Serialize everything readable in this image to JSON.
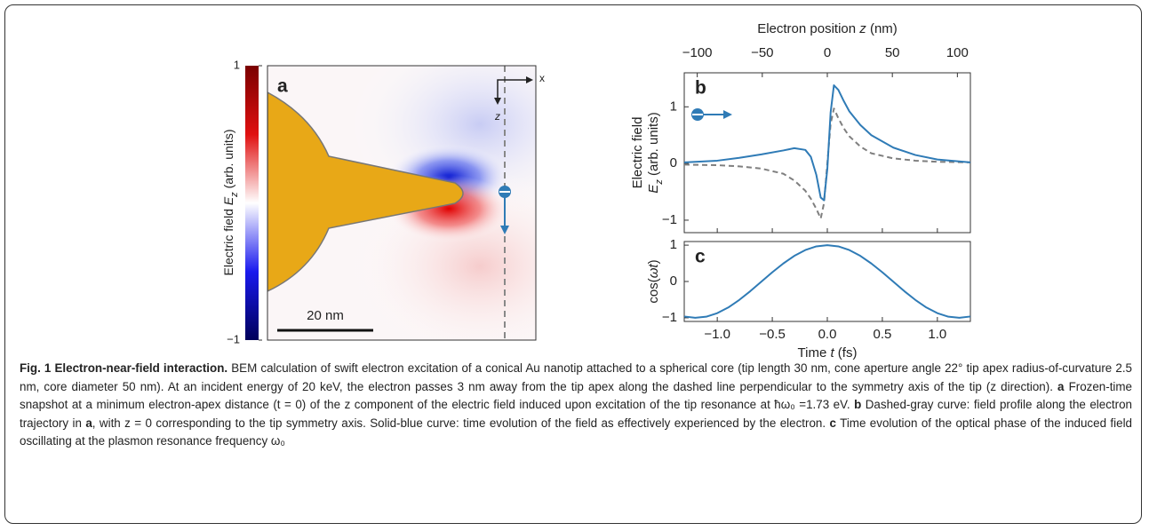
{
  "panel_a": {
    "label": "a",
    "colorbar_label": [
      "Electric field ",
      "E",
      "z",
      " (arb. units)"
    ],
    "colorbar_lim": [
      -1,
      1
    ],
    "colorbar_ticks": [
      1,
      {
        "value": -1,
        "label": "−1"
      }
    ],
    "scale_bar": "20 nm",
    "axis_x": "x",
    "axis_z": "z"
  },
  "chart_data": [
    {
      "type": "line",
      "panel_label": "b",
      "x2label": [
        "Electron position ",
        "z",
        " (nm)"
      ],
      "x2lim": [
        -110,
        110
      ],
      "x2ticks": [
        {
          "value": -100,
          "label": "−100"
        },
        {
          "value": -50,
          "label": "−50"
        },
        0,
        50,
        100
      ],
      "ylabel": [
        "Electric field",
        "E",
        "z",
        " (arb. units)"
      ],
      "xlim": [
        -1.3,
        1.3
      ],
      "ylim": [
        -1.22,
        1.6
      ],
      "yticks": [
        {
          "value": -1,
          "label": "−1"
        },
        0,
        1
      ],
      "x": [
        -1.3,
        -1.0,
        -0.8,
        -0.6,
        -0.4,
        -0.3,
        -0.2,
        -0.15,
        -0.1,
        -0.06,
        -0.03,
        0,
        0.03,
        0.06,
        0.1,
        0.15,
        0.2,
        0.3,
        0.4,
        0.6,
        0.8,
        1.0,
        1.3
      ],
      "series": [
        {
          "color": "#7f7f7f",
          "style": "dashed",
          "values": [
            -0.02,
            -0.03,
            -0.05,
            -0.09,
            -0.18,
            -0.3,
            -0.48,
            -0.62,
            -0.8,
            -0.97,
            -0.7,
            0,
            0.7,
            0.97,
            0.8,
            0.62,
            0.48,
            0.3,
            0.18,
            0.09,
            0.05,
            0.03,
            0.02
          ]
        },
        {
          "color": "#2f7bb6",
          "style": "solid",
          "values": [
            0.02,
            0.05,
            0.1,
            0.16,
            0.23,
            0.27,
            0.24,
            0.12,
            -0.2,
            -0.6,
            -0.65,
            -0.1,
            0.9,
            1.38,
            1.3,
            1.1,
            0.92,
            0.68,
            0.5,
            0.28,
            0.15,
            0.07,
            0.02
          ]
        }
      ]
    },
    {
      "type": "line",
      "panel_label": "c",
      "ylabel": [
        "cos(",
        "ωt",
        ")"
      ],
      "xlabel": [
        "Time ",
        "t",
        " (fs)"
      ],
      "xlim": [
        -1.3,
        1.3
      ],
      "xticks": [
        {
          "value": -1,
          "label": "−1.0"
        },
        {
          "value": -0.5,
          "label": "−0.5"
        },
        {
          "value": 0,
          "label": "0.0"
        },
        {
          "value": 0.5,
          "label": "0.5"
        },
        {
          "value": 1,
          "label": "1.0"
        }
      ],
      "ylim": [
        -1.1,
        1.1
      ],
      "yticks": [
        {
          "value": -1,
          "label": "−1"
        },
        0,
        1
      ],
      "x": [
        -1.3,
        -1.2,
        -1.1,
        -1.0,
        -0.9,
        -0.8,
        -0.7,
        -0.6,
        -0.5,
        -0.4,
        -0.3,
        -0.2,
        -0.1,
        0,
        0.1,
        0.2,
        0.3,
        0.4,
        0.5,
        0.6,
        0.7,
        0.8,
        0.9,
        1.0,
        1.1,
        1.2,
        1.3
      ],
      "series": [
        {
          "color": "#2f7bb6",
          "style": "solid",
          "values": [
            -0.964,
            -1.0,
            -0.969,
            -0.872,
            -0.716,
            -0.508,
            -0.267,
            -0.007,
            0.253,
            0.495,
            0.705,
            0.865,
            0.966,
            1,
            0.966,
            0.865,
            0.705,
            0.495,
            0.253,
            -0.007,
            -0.267,
            -0.508,
            -0.716,
            -0.872,
            -0.969,
            -1.0,
            -0.964
          ]
        }
      ]
    }
  ],
  "caption": [
    {
      "text": "Fig. 1 Electron-near-field interaction.",
      "bold": true
    },
    {
      "text": " BEM calculation of swift electron excitation of a conical Au nanotip attached to a spherical core (tip length 30 nm, cone aperture angle 22° tip apex radius-of-curvature 2.5 nm, core diameter 50 nm). At an incident energy of 20 keV, the electron passes 3 nm away from the tip apex along the dashed line perpendicular to the symmetry axis of the tip (z direction). ",
      "bold": false
    },
    {
      "text": "a",
      "bold": true
    },
    {
      "text": " Frozen-time snapshot at a minimum electron-apex distance (t = 0) of the z component of the electric field induced upon excitation of the tip resonance at ħω₀ =1.73 eV. ",
      "bold": false
    },
    {
      "text": "b",
      "bold": true
    },
    {
      "text": " Dashed-gray curve: field profile along the electron trajectory in ",
      "bold": false
    },
    {
      "text": "a",
      "bold": true
    },
    {
      "text": ", with z = 0 corresponding to the tip symmetry axis. Solid-blue curve: time evolution of the field as effectively experienced by the electron. ",
      "bold": false
    },
    {
      "text": "c",
      "bold": true
    },
    {
      "text": " Time evolution of the optical phase of the induced field oscillating at the plasmon resonance frequency ω₀",
      "bold": false
    }
  ]
}
